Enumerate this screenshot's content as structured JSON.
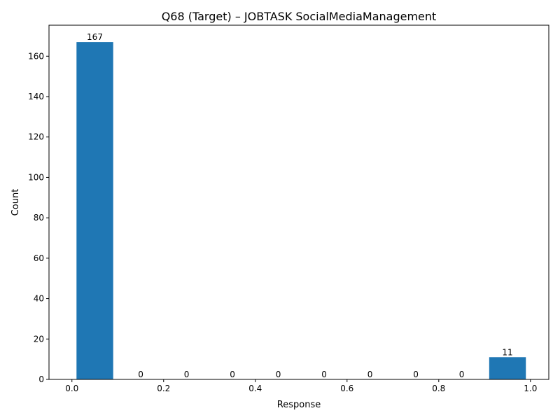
{
  "chart_data": {
    "type": "bar",
    "title": "Q68 (Target) – JOBTASK SocialMediaManagement",
    "xlabel": "Response",
    "ylabel": "Count",
    "xlim": [
      -0.05,
      1.04
    ],
    "ylim": [
      0,
      175.35
    ],
    "bin_width": 0.08,
    "bars": [
      {
        "x": 0.05,
        "value": 167
      },
      {
        "x": 0.15,
        "value": 0
      },
      {
        "x": 0.25,
        "value": 0
      },
      {
        "x": 0.35,
        "value": 0
      },
      {
        "x": 0.45,
        "value": 0
      },
      {
        "x": 0.55,
        "value": 0
      },
      {
        "x": 0.65,
        "value": 0
      },
      {
        "x": 0.75,
        "value": 0
      },
      {
        "x": 0.85,
        "value": 0
      },
      {
        "x": 0.95,
        "value": 11
      }
    ],
    "bar_labels": [
      "167",
      "0",
      "0",
      "0",
      "0",
      "0",
      "0",
      "0",
      "0",
      "11"
    ],
    "xticks": [
      0.0,
      0.2,
      0.4,
      0.6,
      0.8,
      1.0
    ],
    "xtick_labels": [
      "0.0",
      "0.2",
      "0.4",
      "0.6",
      "0.8",
      "1.0"
    ],
    "yticks": [
      0,
      20,
      40,
      60,
      80,
      100,
      120,
      140,
      160
    ],
    "ytick_labels": [
      "0",
      "20",
      "40",
      "60",
      "80",
      "100",
      "120",
      "140",
      "160"
    ],
    "bar_color": "#1f77b4",
    "grid": false,
    "legend": "none"
  }
}
